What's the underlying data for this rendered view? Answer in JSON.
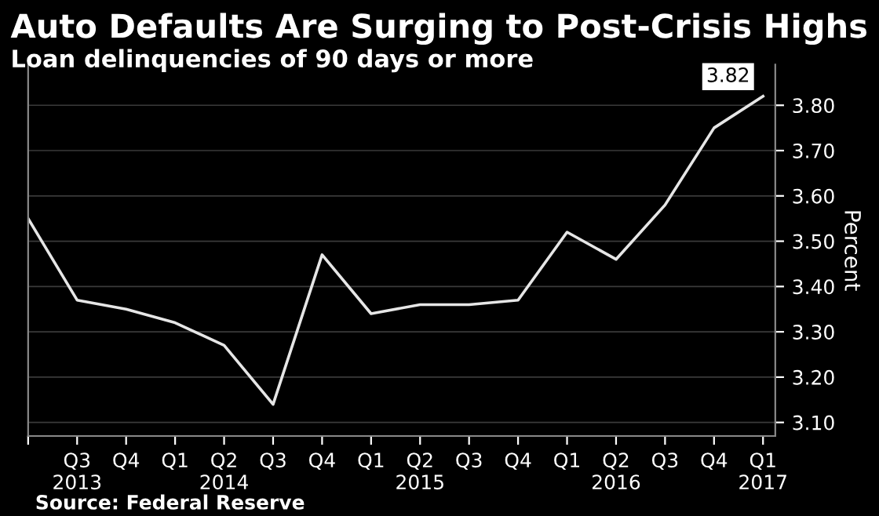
{
  "chart_data": {
    "type": "line",
    "title": "Auto Defaults Are Surging to Post-Crisis Highs",
    "subtitle": "Loan delinquencies of 90 days or more",
    "ylabel": "Percent",
    "categories": [
      null,
      "Q3\n2013",
      "Q4",
      "Q1",
      "Q2\n2014",
      "Q3",
      "Q4",
      "Q1",
      "Q2\n2015",
      "Q3",
      "Q4",
      "Q1",
      "Q2\n2016",
      "Q3",
      "Q4",
      "Q1\n2017"
    ],
    "series": [
      {
        "color": "#e6e6e6",
        "values": [
          3.55,
          3.37,
          3.35,
          3.32,
          3.27,
          3.14,
          3.47,
          3.34,
          3.36,
          3.36,
          3.37,
          3.52,
          3.46,
          3.58,
          3.75,
          3.82
        ],
        "value_labels": [
          null,
          null,
          null,
          null,
          null,
          null,
          null,
          null,
          null,
          null,
          null,
          null,
          null,
          null,
          null,
          "3.82"
        ]
      }
    ],
    "ylim": [
      3.07,
      3.89
    ],
    "yticks": [
      {
        "value": 3.1,
        "label": "3.10"
      },
      {
        "value": 3.2,
        "label": "3.20"
      },
      {
        "value": 3.3,
        "label": "3.30"
      },
      {
        "value": 3.4,
        "label": "3.40"
      },
      {
        "value": 3.5,
        "label": "3.50"
      },
      {
        "value": 3.6,
        "label": "3.60"
      },
      {
        "value": 3.7,
        "label": "3.70"
      },
      {
        "value": 3.8,
        "label": "3.80"
      }
    ],
    "grid": "y",
    "legend": false,
    "marker": "none",
    "line_style": "solid",
    "annotations": [
      "Source: Federal Reserve"
    ]
  }
}
